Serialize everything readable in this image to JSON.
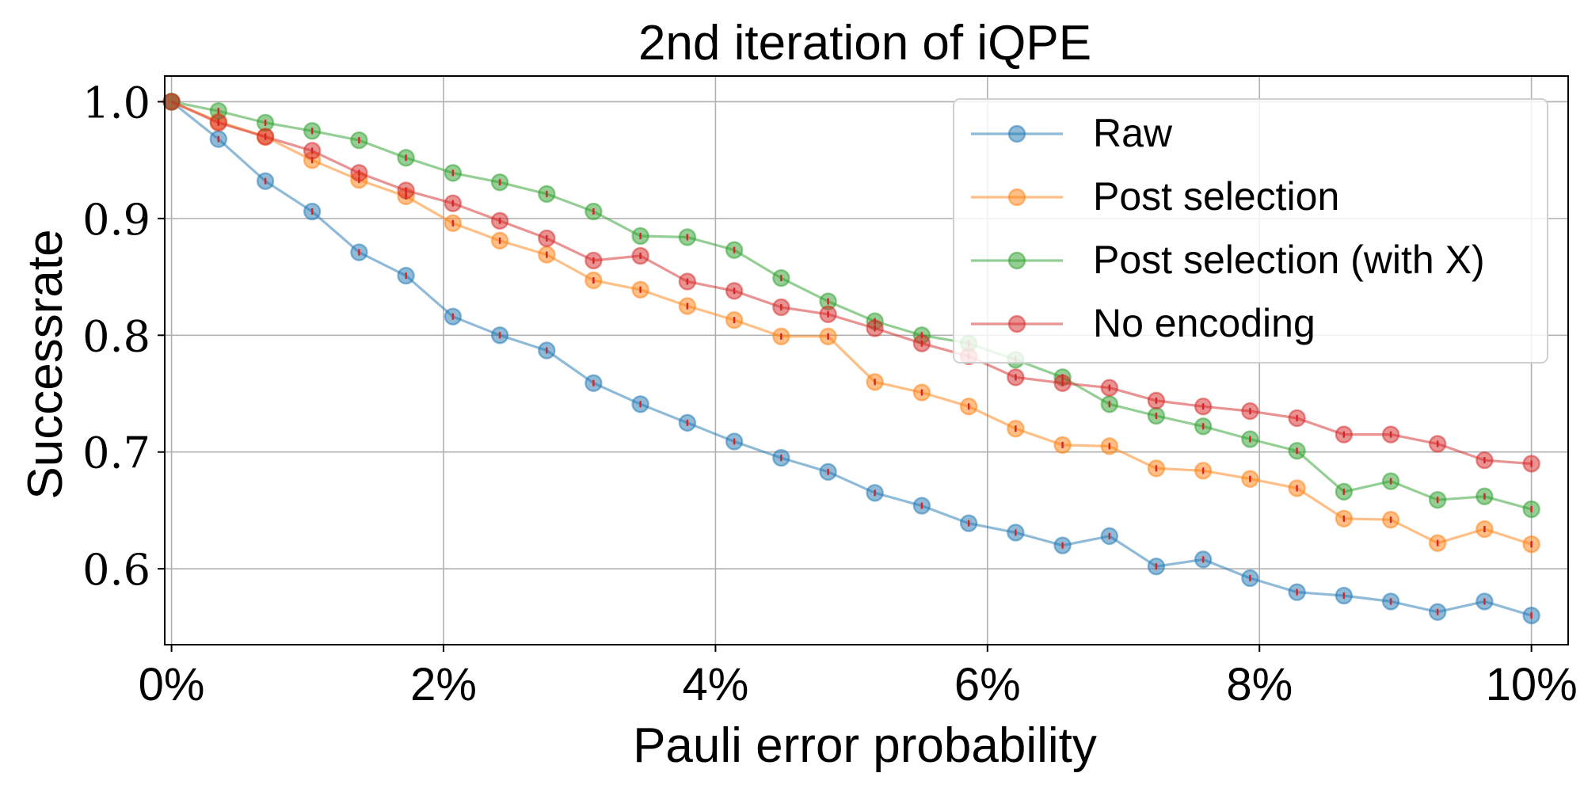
{
  "chart_data": {
    "type": "line",
    "title": "2nd iteration of iQPE",
    "xlabel": "Pauli error probability",
    "ylabel": "Successrate",
    "xlim": [
      -0.0005,
      0.1027
    ],
    "ylim": [
      0.535,
      1.022
    ],
    "xticks": [
      0,
      0.02,
      0.04,
      0.06,
      0.08,
      0.1
    ],
    "xtick_labels": [
      "0%",
      "2%",
      "4%",
      "6%",
      "8%",
      "10%"
    ],
    "yticks": [
      0.6,
      0.7,
      0.8,
      0.9,
      1.0
    ],
    "ytick_labels": [
      "0.6",
      "0.7",
      "0.8",
      "0.9",
      "1.0"
    ],
    "grid": true,
    "legend_position": "top-right",
    "x": [
      0,
      0.00345,
      0.0069,
      0.01034,
      0.01379,
      0.01724,
      0.02069,
      0.02414,
      0.02759,
      0.03103,
      0.03448,
      0.03793,
      0.04138,
      0.04483,
      0.04828,
      0.05172,
      0.05517,
      0.05862,
      0.06207,
      0.06552,
      0.06897,
      0.07241,
      0.07586,
      0.07931,
      0.08276,
      0.08621,
      0.08966,
      0.0931,
      0.09655,
      0.1
    ],
    "series": [
      {
        "name": "Raw",
        "color": "#1f77b4",
        "values": [
          1.0,
          0.968,
          0.932,
          0.906,
          0.871,
          0.851,
          0.816,
          0.8,
          0.787,
          0.759,
          0.741,
          0.725,
          0.709,
          0.695,
          0.683,
          0.665,
          0.654,
          0.639,
          0.631,
          0.62,
          0.628,
          0.602,
          0.608,
          0.592,
          0.58,
          0.577,
          0.572,
          0.563,
          0.572,
          0.56
        ]
      },
      {
        "name": "Post selection",
        "color": "#ff7f0e",
        "values": [
          1.0,
          0.983,
          0.97,
          0.95,
          0.933,
          0.919,
          0.896,
          0.881,
          0.869,
          0.847,
          0.839,
          0.825,
          0.813,
          0.799,
          0.799,
          0.76,
          0.751,
          0.739,
          0.72,
          0.706,
          0.705,
          0.686,
          0.684,
          0.677,
          0.669,
          0.643,
          0.642,
          0.622,
          0.634,
          0.621
        ]
      },
      {
        "name": "Post selection (with X)",
        "color": "#2ca02c",
        "values": [
          1.0,
          0.992,
          0.982,
          0.975,
          0.967,
          0.952,
          0.939,
          0.931,
          0.921,
          0.906,
          0.885,
          0.884,
          0.873,
          0.849,
          0.829,
          0.812,
          0.8,
          0.793,
          0.779,
          0.764,
          0.741,
          0.731,
          0.722,
          0.711,
          0.701,
          0.666,
          0.675,
          0.659,
          0.662,
          0.651
        ]
      },
      {
        "name": "No encoding",
        "color": "#d62728",
        "values": [
          1.0,
          0.982,
          0.97,
          0.958,
          0.939,
          0.924,
          0.913,
          0.898,
          0.883,
          0.864,
          0.868,
          0.846,
          0.838,
          0.824,
          0.818,
          0.806,
          0.793,
          0.782,
          0.764,
          0.759,
          0.755,
          0.744,
          0.739,
          0.735,
          0.729,
          0.715,
          0.715,
          0.707,
          0.693,
          0.69
        ]
      }
    ]
  }
}
